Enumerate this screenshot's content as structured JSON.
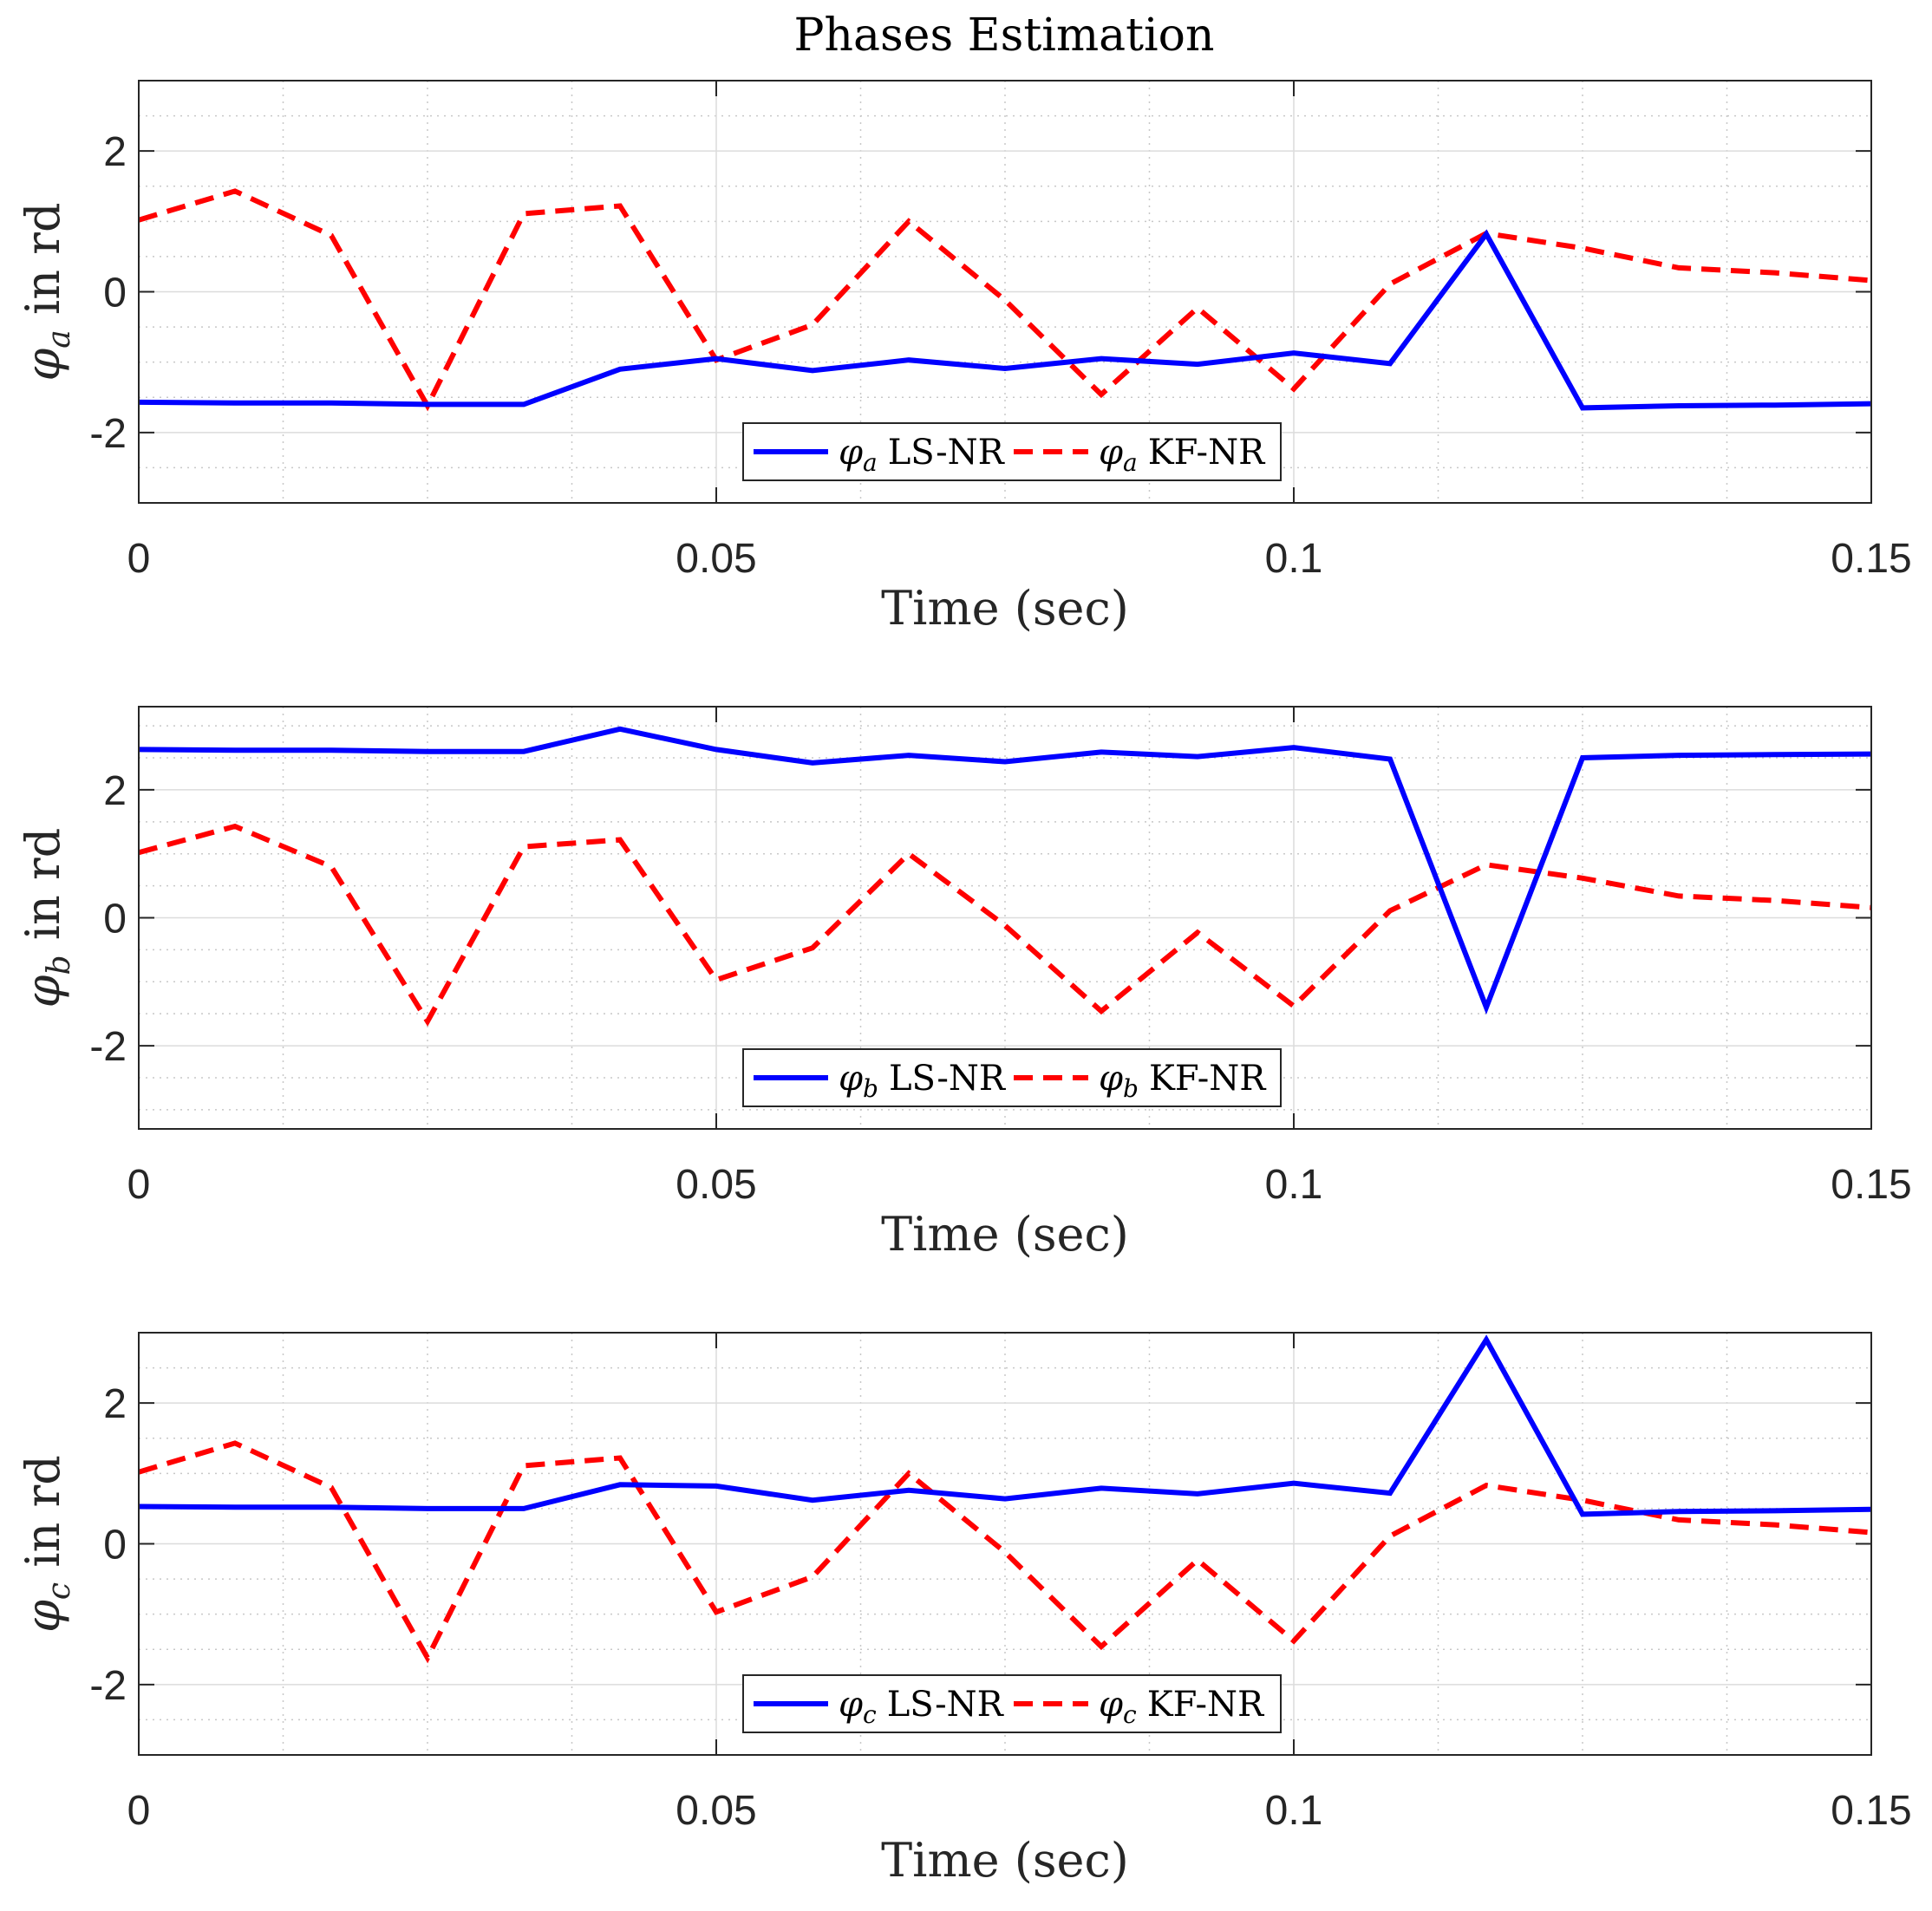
{
  "figure_title": "Phases Estimation",
  "colors": {
    "ls": "#0000ff",
    "kf": "#ff0000",
    "axis": "#262626",
    "grid": "#dcdcdc",
    "minor_grid": "#c8c8c8"
  },
  "chart_data": [
    {
      "type": "line",
      "title": "Phases Estimation",
      "xlabel": "Time (sec)",
      "ylabel": {
        "symbol": "φ",
        "subscript": "a",
        "suffix": " in rd"
      },
      "xlim": [
        0,
        0.15
      ],
      "ylim": [
        -3,
        3
      ],
      "xticks": [
        0,
        0.05,
        0.1,
        0.15
      ],
      "xtick_labels": [
        "0",
        "0.05",
        "0.1",
        "0.15"
      ],
      "yticks": [
        -2,
        0,
        2
      ],
      "ytick_labels": [
        "-2",
        "0",
        "2"
      ],
      "grid": true,
      "legend_position": "bottom-center",
      "x": [
        0,
        0.00833,
        0.01667,
        0.025,
        0.03333,
        0.04167,
        0.05,
        0.05833,
        0.06667,
        0.075,
        0.08333,
        0.09167,
        0.1,
        0.10833,
        0.11667,
        0.125,
        0.13333,
        0.14167,
        0.15
      ],
      "series": [
        {
          "name": "LS-NR",
          "symbol": "φ",
          "subscript": "a",
          "style": "solid",
          "values": [
            -1.57,
            -1.58,
            -1.58,
            -1.6,
            -1.6,
            -1.1,
            -0.95,
            -1.12,
            -0.97,
            -1.09,
            -0.95,
            -1.03,
            -0.87,
            -1.02,
            0.82,
            -1.65,
            -1.62,
            -1.61,
            -1.59
          ]
        },
        {
          "name": "KF-NR",
          "symbol": "φ",
          "subscript": "a",
          "style": "dashed",
          "values": [
            1.02,
            1.43,
            0.8,
            -1.62,
            1.11,
            1.22,
            -0.97,
            -0.47,
            1.0,
            -0.12,
            -1.46,
            -0.23,
            -1.38,
            0.11,
            0.83,
            0.62,
            0.34,
            0.27,
            0.16
          ]
        }
      ]
    },
    {
      "type": "line",
      "title": "",
      "xlabel": "Time (sec)",
      "ylabel": {
        "symbol": "φ",
        "subscript": "b",
        "suffix": " in rd"
      },
      "xlim": [
        0,
        0.15
      ],
      "ylim": [
        -3.3,
        3.3
      ],
      "xticks": [
        0,
        0.05,
        0.1,
        0.15
      ],
      "xtick_labels": [
        "0",
        "0.05",
        "0.1",
        "0.15"
      ],
      "yticks": [
        -2,
        0,
        2
      ],
      "ytick_labels": [
        "-2",
        "0",
        "2"
      ],
      "grid": true,
      "legend_position": "bottom-center",
      "x": [
        0,
        0.00833,
        0.01667,
        0.025,
        0.03333,
        0.04167,
        0.05,
        0.05833,
        0.06667,
        0.075,
        0.08333,
        0.09167,
        0.1,
        0.10833,
        0.11667,
        0.125,
        0.13333,
        0.14167,
        0.15
      ],
      "series": [
        {
          "name": "LS-NR",
          "symbol": "φ",
          "subscript": "b",
          "style": "solid",
          "values": [
            2.63,
            2.62,
            2.62,
            2.6,
            2.6,
            2.95,
            2.63,
            2.42,
            2.54,
            2.44,
            2.59,
            2.52,
            2.66,
            2.48,
            -1.4,
            2.5,
            2.54,
            2.55,
            2.56
          ]
        },
        {
          "name": "KF-NR",
          "symbol": "φ",
          "subscript": "b",
          "style": "dashed",
          "values": [
            1.02,
            1.43,
            0.8,
            -1.62,
            1.11,
            1.22,
            -0.97,
            -0.47,
            1.0,
            -0.12,
            -1.46,
            -0.23,
            -1.38,
            0.11,
            0.83,
            0.62,
            0.34,
            0.27,
            0.16
          ]
        }
      ]
    },
    {
      "type": "line",
      "title": "",
      "xlabel": "Time (sec)",
      "ylabel": {
        "symbol": "φ",
        "subscript": "c",
        "suffix": " in rd"
      },
      "xlim": [
        0,
        0.15
      ],
      "ylim": [
        -3,
        3
      ],
      "xticks": [
        0,
        0.05,
        0.1,
        0.15
      ],
      "xtick_labels": [
        "0",
        "0.05",
        "0.1",
        "0.15"
      ],
      "yticks": [
        -2,
        0,
        2
      ],
      "ytick_labels": [
        "-2",
        "0",
        "2"
      ],
      "grid": true,
      "legend_position": "bottom-center",
      "x": [
        0,
        0.00833,
        0.01667,
        0.025,
        0.03333,
        0.04167,
        0.05,
        0.05833,
        0.06667,
        0.075,
        0.08333,
        0.09167,
        0.1,
        0.10833,
        0.11667,
        0.125,
        0.13333,
        0.14167,
        0.15
      ],
      "series": [
        {
          "name": "LS-NR",
          "symbol": "φ",
          "subscript": "c",
          "style": "solid",
          "values": [
            0.53,
            0.52,
            0.52,
            0.5,
            0.5,
            0.84,
            0.82,
            0.62,
            0.76,
            0.64,
            0.79,
            0.71,
            0.86,
            0.72,
            2.9,
            0.42,
            0.46,
            0.47,
            0.49
          ]
        },
        {
          "name": "KF-NR",
          "symbol": "φ",
          "subscript": "c",
          "style": "dashed",
          "values": [
            1.02,
            1.43,
            0.8,
            -1.62,
            1.11,
            1.22,
            -0.97,
            -0.47,
            1.0,
            -0.12,
            -1.46,
            -0.23,
            -1.38,
            0.11,
            0.83,
            0.62,
            0.34,
            0.27,
            0.16
          ]
        }
      ]
    }
  ]
}
